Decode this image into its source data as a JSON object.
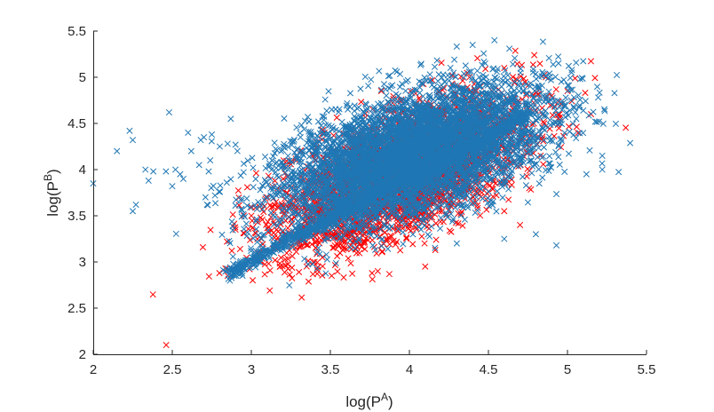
{
  "chart_data": {
    "type": "scatter",
    "xlabel": "log(P^A)",
    "ylabel": "log(P^B)",
    "xlabel_parts": {
      "base": "log(P",
      "sup": "A",
      "close": ")"
    },
    "ylabel_parts": {
      "base": "log(P",
      "sup": "B",
      "close": ")"
    },
    "xlim": [
      2,
      5.5
    ],
    "ylim": [
      2,
      5.5
    ],
    "xticks": [
      "2",
      "2.5",
      "3",
      "3.5",
      "4",
      "4.5",
      "5",
      "5.5"
    ],
    "yticks": [
      "2",
      "2.5",
      "3",
      "3.5",
      "4",
      "4.5",
      "5",
      "5.5"
    ],
    "grid": false,
    "legend": "none",
    "marker": "x",
    "series": [
      {
        "color": "#ff0000",
        "cluster": {
          "center": [
            3.95,
            3.95
          ],
          "spread": [
            0.38,
            0.4
          ],
          "correlation": 0.62,
          "approx_points": 3500
        },
        "notable_points": [
          [
            4.79,
            5.24
          ],
          [
            4.6,
            5.1
          ],
          [
            4.38,
            5.0
          ],
          [
            4.9,
            4.8
          ],
          [
            5.0,
            4.85
          ],
          [
            4.45,
            4.9
          ],
          [
            2.85,
            2.85
          ],
          [
            3.05,
            3.1
          ],
          [
            3.0,
            3.5
          ],
          [
            2.9,
            3.35
          ],
          [
            3.4,
            3.0
          ],
          [
            3.8,
            2.9
          ],
          [
            4.1,
            2.95
          ],
          [
            3.2,
            3.55
          ],
          [
            3.1,
            3.7
          ],
          [
            4.7,
            3.4
          ],
          [
            4.95,
            4.6
          ],
          [
            4.6,
            3.55
          ]
        ]
      },
      {
        "color": "#1f77b4",
        "cluster": {
          "center": [
            4.0,
            4.15
          ],
          "spread": [
            0.42,
            0.38
          ],
          "correlation": 0.55,
          "approx_points": 5500
        },
        "diagonal_band": {
          "from": [
            2.85,
            2.87
          ],
          "to": [
            4.75,
            4.6
          ],
          "approx_points": 900
        },
        "outliers": [
          [
            2.0,
            3.85
          ],
          [
            2.15,
            4.2
          ],
          [
            2.23,
            4.42
          ],
          [
            2.25,
            4.32
          ],
          [
            2.25,
            3.55
          ],
          [
            2.27,
            3.62
          ],
          [
            2.33,
            4.0
          ],
          [
            2.35,
            3.88
          ],
          [
            2.38,
            3.98
          ],
          [
            2.46,
            3.98
          ],
          [
            2.48,
            4.62
          ],
          [
            2.52,
            4.0
          ],
          [
            2.55,
            3.95
          ],
          [
            2.57,
            3.9
          ],
          [
            2.6,
            4.4
          ],
          [
            2.62,
            4.2
          ],
          [
            2.67,
            4.05
          ],
          [
            2.68,
            4.32
          ],
          [
            2.7,
            4.35
          ],
          [
            2.71,
            3.7
          ],
          [
            2.72,
            3.62
          ],
          [
            2.74,
            4.1
          ],
          [
            2.75,
            4.38
          ],
          [
            2.77,
            3.72
          ],
          [
            2.8,
            4.25
          ],
          [
            2.85,
            4.28
          ],
          [
            2.87,
            4.55
          ],
          [
            2.9,
            4.27
          ],
          [
            2.5,
            3.82
          ],
          [
            2.73,
            3.98
          ],
          [
            4.4,
            5.35
          ],
          [
            4.93,
            3.18
          ],
          [
            5.1,
            4.64
          ],
          [
            5.2,
            4.52
          ],
          [
            5.22,
            4.15
          ],
          [
            5.22,
            4.0
          ],
          [
            5.12,
            3.95
          ],
          [
            5.05,
            4.62
          ],
          [
            4.8,
            3.3
          ],
          [
            4.6,
            3.25
          ],
          [
            4.3,
            3.2
          ]
        ]
      }
    ]
  }
}
